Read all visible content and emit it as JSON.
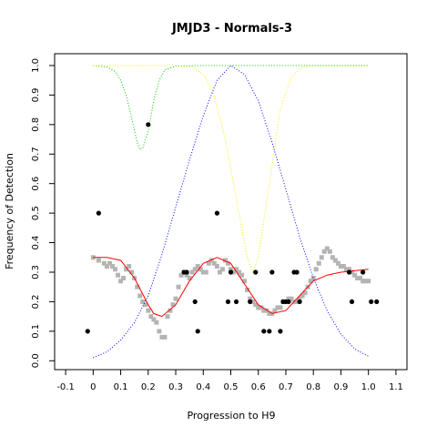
{
  "chart_data": {
    "type": "scatter",
    "title": "JMJD3 - Normals-3",
    "xlabel": "Progression to H9",
    "ylabel": "Frequency of Detection",
    "xlim": [
      -0.14,
      1.14
    ],
    "ylim": [
      -0.03,
      1.04
    ],
    "x_ticks": [
      "-0.1",
      "0",
      "0.1",
      "0.2",
      "0.3",
      "0.4",
      "0.5",
      "0.6",
      "0.7",
      "0.8",
      "0.9",
      "1.0",
      "1.1"
    ],
    "y_ticks": [
      "0.0",
      "0.1",
      "0.2",
      "0.3",
      "0.4",
      "0.5",
      "0.6",
      "0.7",
      "0.8",
      "0.9",
      "1.0"
    ],
    "grid": false,
    "legend": "none",
    "colors": {
      "black_points": "#000000",
      "gray_points": "#b4b4b4",
      "red_curve": "#ff0000",
      "green_curve": "#00cc00",
      "yellow_curve": "#f0f000",
      "blue_curve": "#0000ff"
    },
    "series": [
      {
        "kind": "points",
        "color": "black",
        "points": [
          [
            -0.02,
            0.1
          ],
          [
            0.02,
            0.5
          ],
          [
            0.2,
            0.8
          ],
          [
            0.33,
            0.3
          ],
          [
            0.34,
            0.3
          ],
          [
            0.37,
            0.2
          ],
          [
            0.38,
            0.1
          ],
          [
            0.45,
            0.5
          ],
          [
            0.49,
            0.2
          ],
          [
            0.5,
            0.3
          ],
          [
            0.52,
            0.2
          ],
          [
            0.57,
            0.2
          ],
          [
            0.59,
            0.3
          ],
          [
            0.62,
            0.1
          ],
          [
            0.64,
            0.1
          ],
          [
            0.65,
            0.3
          ],
          [
            0.68,
            0.1
          ],
          [
            0.69,
            0.2
          ],
          [
            0.7,
            0.2
          ],
          [
            0.71,
            0.2
          ],
          [
            0.73,
            0.3
          ],
          [
            0.74,
            0.3
          ],
          [
            0.75,
            0.2
          ],
          [
            0.93,
            0.3
          ],
          [
            0.94,
            0.2
          ],
          [
            0.98,
            0.3
          ],
          [
            1.01,
            0.2
          ],
          [
            1.03,
            0.2
          ]
        ]
      },
      {
        "kind": "points",
        "color": "gray",
        "points": [
          [
            0.0,
            0.35
          ],
          [
            0.02,
            0.34
          ],
          [
            0.04,
            0.33
          ],
          [
            0.05,
            0.32
          ],
          [
            0.06,
            0.33
          ],
          [
            0.07,
            0.32
          ],
          [
            0.08,
            0.31
          ],
          [
            0.09,
            0.29
          ],
          [
            0.1,
            0.27
          ],
          [
            0.11,
            0.28
          ],
          [
            0.12,
            0.31
          ],
          [
            0.13,
            0.32
          ],
          [
            0.14,
            0.3
          ],
          [
            0.15,
            0.28
          ],
          [
            0.16,
            0.25
          ],
          [
            0.17,
            0.22
          ],
          [
            0.18,
            0.2
          ],
          [
            0.19,
            0.19
          ],
          [
            0.2,
            0.17
          ],
          [
            0.21,
            0.15
          ],
          [
            0.22,
            0.14
          ],
          [
            0.23,
            0.13
          ],
          [
            0.24,
            0.1
          ],
          [
            0.25,
            0.08
          ],
          [
            0.26,
            0.08
          ],
          [
            0.27,
            0.15
          ],
          [
            0.28,
            0.17
          ],
          [
            0.29,
            0.19
          ],
          [
            0.3,
            0.21
          ],
          [
            0.31,
            0.25
          ],
          [
            0.32,
            0.29
          ],
          [
            0.33,
            0.3
          ],
          [
            0.34,
            0.29
          ],
          [
            0.35,
            0.28
          ],
          [
            0.36,
            0.3
          ],
          [
            0.37,
            0.31
          ],
          [
            0.38,
            0.32
          ],
          [
            0.39,
            0.31
          ],
          [
            0.4,
            0.3
          ],
          [
            0.41,
            0.3
          ],
          [
            0.42,
            0.33
          ],
          [
            0.43,
            0.34
          ],
          [
            0.44,
            0.33
          ],
          [
            0.45,
            0.32
          ],
          [
            0.46,
            0.3
          ],
          [
            0.47,
            0.31
          ],
          [
            0.48,
            0.34
          ],
          [
            0.49,
            0.33
          ],
          [
            0.5,
            0.31
          ],
          [
            0.51,
            0.3
          ],
          [
            0.52,
            0.31
          ],
          [
            0.53,
            0.3
          ],
          [
            0.54,
            0.29
          ],
          [
            0.55,
            0.27
          ],
          [
            0.56,
            0.24
          ],
          [
            0.57,
            0.21
          ],
          [
            0.58,
            0.2
          ],
          [
            0.59,
            0.19
          ],
          [
            0.6,
            0.18
          ],
          [
            0.61,
            0.18
          ],
          [
            0.62,
            0.17
          ],
          [
            0.63,
            0.17
          ],
          [
            0.64,
            0.16
          ],
          [
            0.65,
            0.16
          ],
          [
            0.66,
            0.17
          ],
          [
            0.67,
            0.18
          ],
          [
            0.68,
            0.18
          ],
          [
            0.69,
            0.2
          ],
          [
            0.7,
            0.2
          ],
          [
            0.71,
            0.21
          ],
          [
            0.72,
            0.21
          ],
          [
            0.73,
            0.2
          ],
          [
            0.74,
            0.2
          ],
          [
            0.75,
            0.21
          ],
          [
            0.76,
            0.22
          ],
          [
            0.77,
            0.23
          ],
          [
            0.78,
            0.25
          ],
          [
            0.79,
            0.27
          ],
          [
            0.8,
            0.28
          ],
          [
            0.81,
            0.31
          ],
          [
            0.82,
            0.33
          ],
          [
            0.83,
            0.35
          ],
          [
            0.84,
            0.37
          ],
          [
            0.85,
            0.38
          ],
          [
            0.86,
            0.37
          ],
          [
            0.87,
            0.35
          ],
          [
            0.88,
            0.34
          ],
          [
            0.89,
            0.33
          ],
          [
            0.9,
            0.32
          ],
          [
            0.91,
            0.32
          ],
          [
            0.92,
            0.31
          ],
          [
            0.93,
            0.31
          ],
          [
            0.94,
            0.3
          ],
          [
            0.95,
            0.29
          ],
          [
            0.96,
            0.28
          ],
          [
            0.97,
            0.28
          ],
          [
            0.98,
            0.27
          ],
          [
            0.99,
            0.27
          ],
          [
            1.0,
            0.27
          ]
        ]
      },
      {
        "kind": "line",
        "color": "red",
        "points": [
          [
            0.0,
            0.35
          ],
          [
            0.05,
            0.35
          ],
          [
            0.1,
            0.34
          ],
          [
            0.15,
            0.28
          ],
          [
            0.2,
            0.19
          ],
          [
            0.22,
            0.16
          ],
          [
            0.25,
            0.15
          ],
          [
            0.3,
            0.19
          ],
          [
            0.35,
            0.27
          ],
          [
            0.4,
            0.33
          ],
          [
            0.45,
            0.35
          ],
          [
            0.5,
            0.33
          ],
          [
            0.55,
            0.26
          ],
          [
            0.6,
            0.19
          ],
          [
            0.65,
            0.16
          ],
          [
            0.7,
            0.17
          ],
          [
            0.75,
            0.22
          ],
          [
            0.8,
            0.27
          ],
          [
            0.85,
            0.29
          ],
          [
            0.9,
            0.3
          ],
          [
            0.95,
            0.305
          ],
          [
            1.0,
            0.31
          ]
        ]
      },
      {
        "kind": "line",
        "color": "green",
        "style": "dotted",
        "points": [
          [
            0.0,
            1.0
          ],
          [
            0.05,
            0.995
          ],
          [
            0.08,
            0.98
          ],
          [
            0.1,
            0.95
          ],
          [
            0.12,
            0.9
          ],
          [
            0.14,
            0.82
          ],
          [
            0.16,
            0.74
          ],
          [
            0.17,
            0.715
          ],
          [
            0.18,
            0.72
          ],
          [
            0.2,
            0.78
          ],
          [
            0.22,
            0.88
          ],
          [
            0.24,
            0.95
          ],
          [
            0.26,
            0.985
          ],
          [
            0.3,
            0.998
          ],
          [
            0.4,
            1.0
          ],
          [
            1.0,
            1.0
          ]
        ]
      },
      {
        "kind": "line",
        "color": "yellow",
        "style": "dotted",
        "points": [
          [
            0.0,
            1.0
          ],
          [
            0.3,
            1.0
          ],
          [
            0.36,
            0.995
          ],
          [
            0.4,
            0.97
          ],
          [
            0.44,
            0.9
          ],
          [
            0.48,
            0.75
          ],
          [
            0.52,
            0.55
          ],
          [
            0.56,
            0.35
          ],
          [
            0.58,
            0.3
          ],
          [
            0.6,
            0.35
          ],
          [
            0.64,
            0.6
          ],
          [
            0.68,
            0.85
          ],
          [
            0.72,
            0.96
          ],
          [
            0.76,
            0.995
          ],
          [
            0.8,
            1.0
          ],
          [
            1.0,
            1.0
          ]
        ]
      },
      {
        "kind": "line",
        "color": "blue",
        "style": "dotted",
        "points": [
          [
            0.0,
            0.01
          ],
          [
            0.05,
            0.03
          ],
          [
            0.1,
            0.07
          ],
          [
            0.15,
            0.13
          ],
          [
            0.2,
            0.22
          ],
          [
            0.25,
            0.36
          ],
          [
            0.3,
            0.52
          ],
          [
            0.35,
            0.68
          ],
          [
            0.4,
            0.83
          ],
          [
            0.45,
            0.95
          ],
          [
            0.5,
            1.0
          ],
          [
            0.55,
            0.97
          ],
          [
            0.6,
            0.88
          ],
          [
            0.65,
            0.74
          ],
          [
            0.7,
            0.58
          ],
          [
            0.75,
            0.42
          ],
          [
            0.8,
            0.28
          ],
          [
            0.85,
            0.17
          ],
          [
            0.9,
            0.09
          ],
          [
            0.95,
            0.04
          ],
          [
            1.0,
            0.015
          ]
        ]
      }
    ]
  }
}
